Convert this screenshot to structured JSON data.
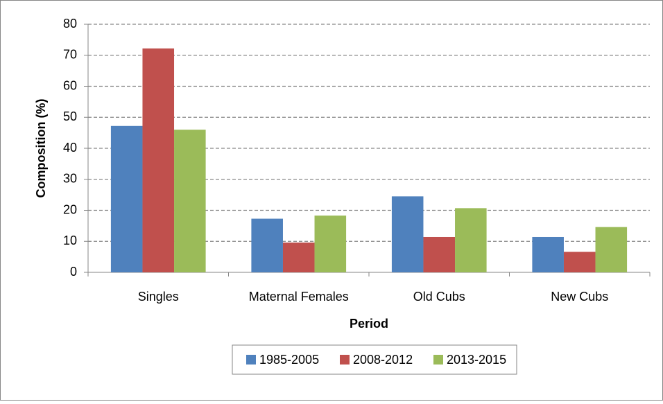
{
  "chart_data": {
    "type": "bar",
    "x_label": "Period",
    "y_label": "Composition (%)",
    "categories": [
      "Singles",
      "Maternal Females",
      "Old Cubs",
      "New Cubs"
    ],
    "series": [
      {
        "name": "1985-2005",
        "color": "#4f81bd",
        "values": [
          47.2,
          17.3,
          24.5,
          11.4
        ]
      },
      {
        "name": "2008-2012",
        "color": "#c0504d",
        "values": [
          72.2,
          9.6,
          11.4,
          6.6
        ]
      },
      {
        "name": "2013-2015",
        "color": "#9bbb59",
        "values": [
          46.0,
          18.3,
          20.7,
          14.6
        ]
      }
    ],
    "ylim": [
      0,
      80
    ],
    "yticks": [
      0,
      10,
      20,
      30,
      40,
      50,
      60,
      70,
      80
    ],
    "grid": true,
    "legend": "bottom"
  }
}
